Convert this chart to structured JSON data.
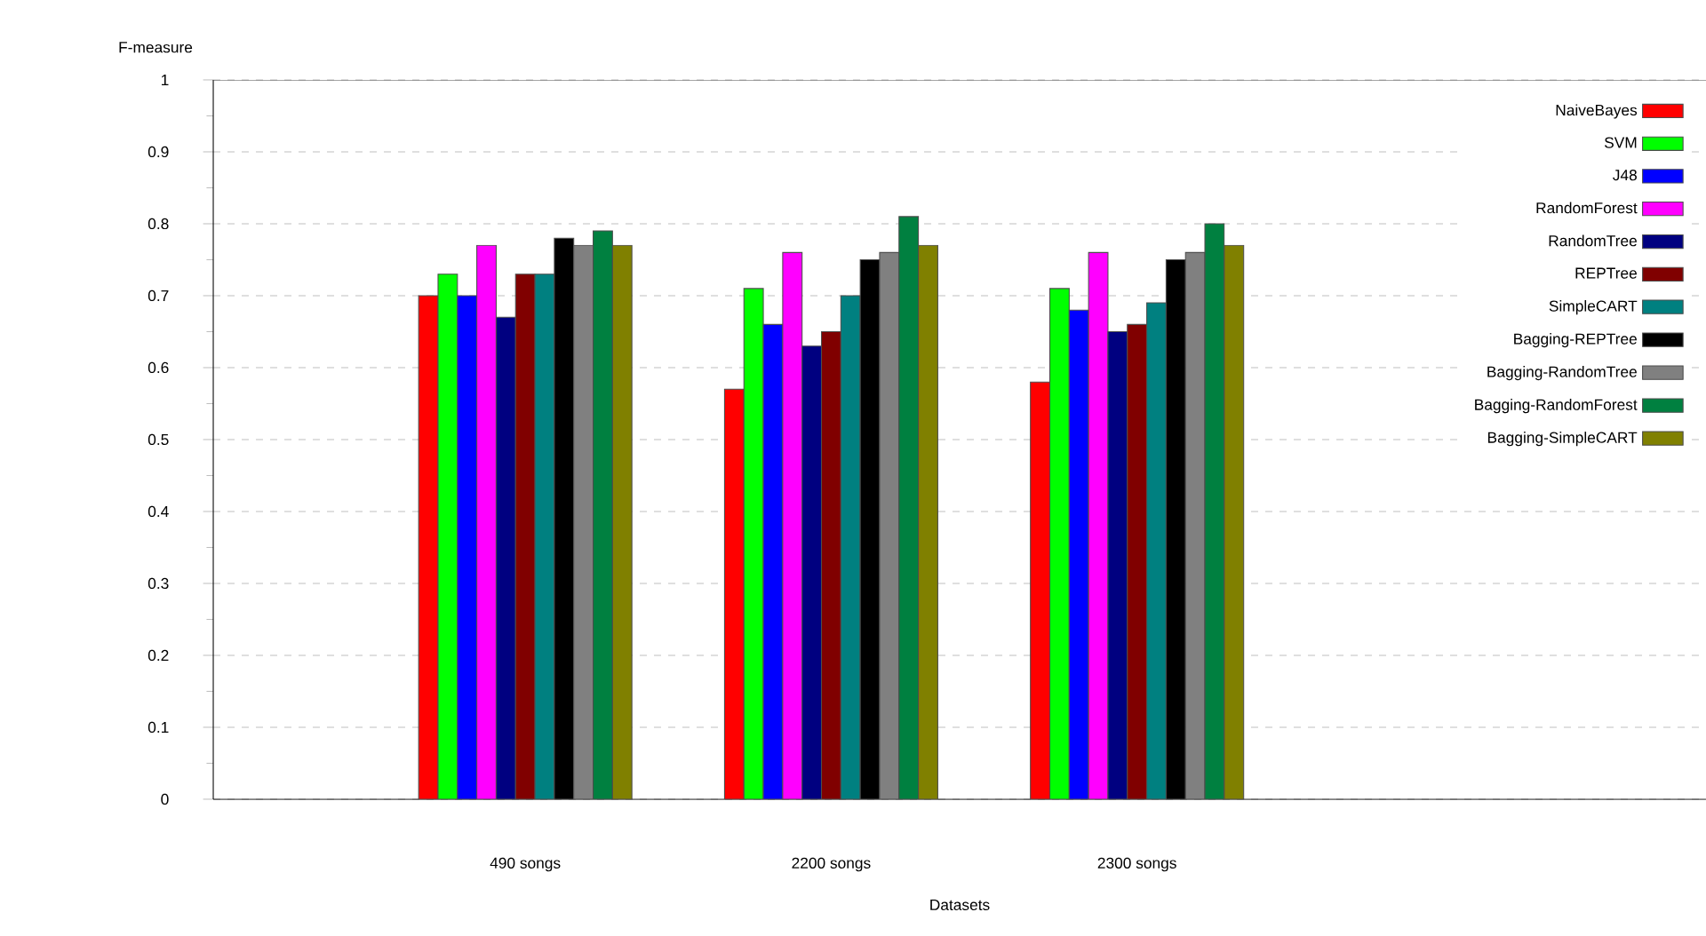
{
  "chart_data": {
    "type": "bar",
    "xlabel": "Datasets",
    "ylabel": "F-measure",
    "categories": [
      "490 songs",
      "2200 songs",
      "2300 songs"
    ],
    "series": [
      {
        "name": "NaiveBayes",
        "color": "#ff0000",
        "values": [
          0.7,
          0.57,
          0.58
        ]
      },
      {
        "name": "SVM",
        "color": "#00ff00",
        "values": [
          0.73,
          0.71,
          0.71
        ]
      },
      {
        "name": "J48",
        "color": "#0000ff",
        "values": [
          0.7,
          0.66,
          0.68
        ]
      },
      {
        "name": "RandomForest",
        "color": "#ff00ff",
        "values": [
          0.77,
          0.76,
          0.76
        ]
      },
      {
        "name": "RandomTree",
        "color": "#000080",
        "values": [
          0.67,
          0.63,
          0.65
        ]
      },
      {
        "name": "REPTree",
        "color": "#800000",
        "values": [
          0.73,
          0.65,
          0.66
        ]
      },
      {
        "name": "SimpleCART",
        "color": "#008080",
        "values": [
          0.73,
          0.7,
          0.69
        ]
      },
      {
        "name": "Bagging-REPTree",
        "color": "#000000",
        "values": [
          0.78,
          0.75,
          0.75
        ]
      },
      {
        "name": "Bagging-RandomTree",
        "color": "#808080",
        "values": [
          0.77,
          0.76,
          0.76
        ]
      },
      {
        "name": "Bagging-RandomForest",
        "color": "#008040",
        "values": [
          0.79,
          0.81,
          0.8
        ]
      },
      {
        "name": "Bagging-SimpleCART",
        "color": "#808000",
        "values": [
          0.77,
          0.77,
          0.77
        ]
      }
    ],
    "ylim": [
      0,
      1
    ],
    "yticks": [
      0,
      0.1,
      0.2,
      0.3,
      0.4,
      0.5,
      0.6,
      0.7,
      0.8,
      0.9,
      1
    ],
    "grid": "y",
    "legend": "top right"
  }
}
